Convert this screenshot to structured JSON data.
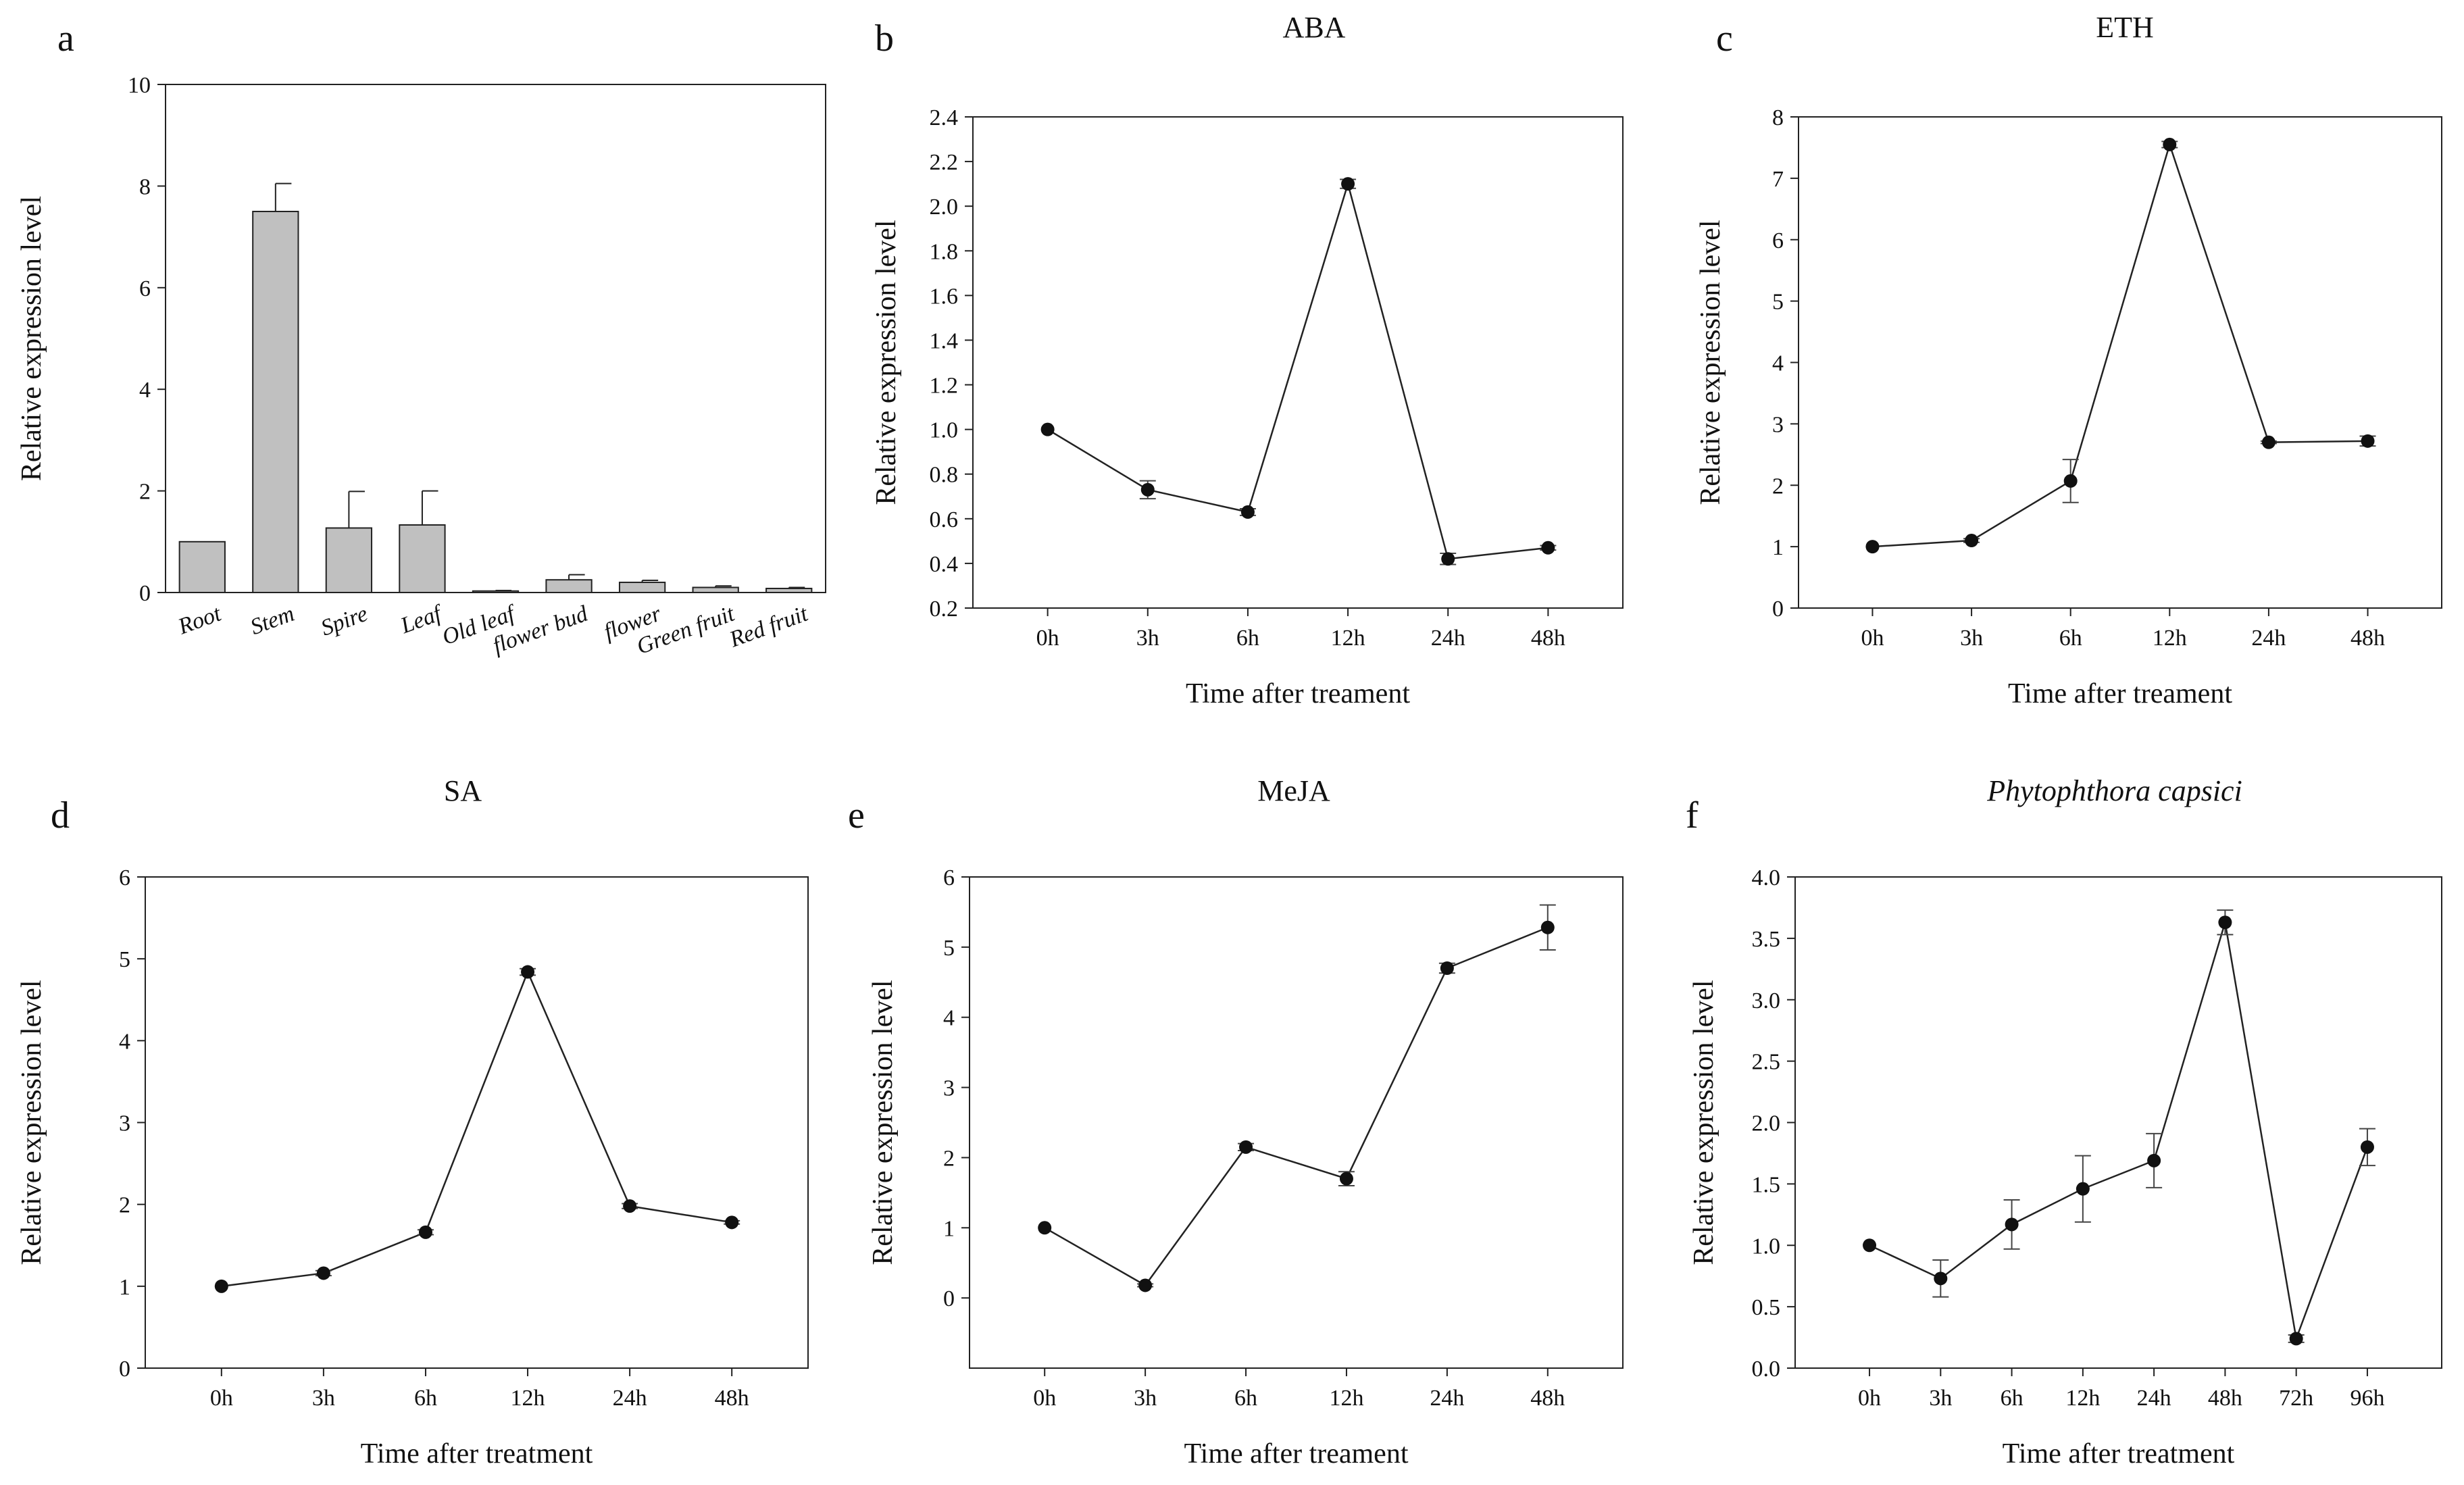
{
  "figure": {
    "chart_data": [
      {
        "panel": "a",
        "type": "bar",
        "title": "",
        "xlabel": "",
        "ylabel": "Relative expression level",
        "ylim": [
          0,
          10
        ],
        "yticks": [
          "0",
          "2",
          "4",
          "6",
          "8",
          "10"
        ],
        "categories": [
          "Root",
          "Stem",
          "Spire",
          "Leaf",
          "Old leaf",
          "flower bud",
          "flower",
          "Green fruit",
          "Red fruit"
        ],
        "values": [
          1.0,
          7.5,
          1.27,
          1.33,
          0.03,
          0.25,
          0.2,
          0.1,
          0.08
        ],
        "errors": [
          0.0,
          0.55,
          0.72,
          0.67,
          0.01,
          0.1,
          0.04,
          0.03,
          0.02
        ],
        "bar_color": "#c0c0c0"
      },
      {
        "panel": "b",
        "type": "line",
        "title": "ABA",
        "xlabel": "Time after treament",
        "ylabel": "Relative expression level",
        "ylim": [
          0.2,
          2.4
        ],
        "yticks": [
          "0.2",
          "0.4",
          "0.6",
          "0.8",
          "1.0",
          "1.2",
          "1.4",
          "1.6",
          "1.8",
          "2.0",
          "2.2",
          "2.4"
        ],
        "categories": [
          "0h",
          "3h",
          "6h",
          "12h",
          "24h",
          "48h"
        ],
        "values": [
          1.0,
          0.73,
          0.63,
          2.1,
          0.42,
          0.47
        ],
        "errors": [
          0.0,
          0.04,
          0.015,
          0.02,
          0.025,
          0.01
        ]
      },
      {
        "panel": "c",
        "type": "line",
        "title": "ETH",
        "xlabel": "Time after treament",
        "ylabel": "Relative expression level",
        "ylim": [
          0,
          8
        ],
        "yticks": [
          "0",
          "1",
          "2",
          "3",
          "4",
          "5",
          "6",
          "7",
          "8"
        ],
        "categories": [
          "0h",
          "3h",
          "6h",
          "12h",
          "24h",
          "48h"
        ],
        "values": [
          1.0,
          1.1,
          2.07,
          7.55,
          2.7,
          2.72
        ],
        "errors": [
          0.0,
          0.03,
          0.35,
          0.05,
          0.02,
          0.08
        ]
      },
      {
        "panel": "d",
        "type": "line",
        "title": "SA",
        "xlabel": "Time after treatment",
        "ylabel": "Relative expression level",
        "ylim": [
          0,
          6
        ],
        "yticks": [
          "0",
          "1",
          "2",
          "3",
          "4",
          "5",
          "6"
        ],
        "categories": [
          "0h",
          "3h",
          "6h",
          "12h",
          "24h",
          "48h"
        ],
        "values": [
          1.0,
          1.16,
          1.66,
          4.84,
          1.98,
          1.78
        ],
        "errors": [
          0.0,
          0.03,
          0.03,
          0.04,
          0.03,
          0.02
        ]
      },
      {
        "panel": "e",
        "type": "line",
        "title": "MeJA",
        "xlabel": "Time after treament",
        "ylabel": "Relative expression level",
        "ylim": [
          -1,
          6
        ],
        "yticks": [
          "0",
          "1",
          "2",
          "3",
          "4",
          "5",
          "6"
        ],
        "categories": [
          "0h",
          "3h",
          "6h",
          "12h",
          "24h",
          "48h"
        ],
        "values": [
          1.0,
          0.18,
          2.15,
          1.7,
          4.7,
          5.28
        ],
        "errors": [
          0.0,
          0.02,
          0.05,
          0.1,
          0.07,
          0.32
        ]
      },
      {
        "panel": "f",
        "type": "line",
        "title": "Phytophthora capsici",
        "title_italic": true,
        "xlabel": "Time after treatment",
        "ylabel": "Relative expression level",
        "ylim": [
          0,
          4
        ],
        "yticks": [
          "0.0",
          "0.5",
          "1.0",
          "1.5",
          "2.0",
          "2.5",
          "3.0",
          "3.5",
          "4.0"
        ],
        "categories": [
          "0h",
          "3h",
          "6h",
          "12h",
          "24h",
          "48h",
          "72h",
          "96h"
        ],
        "values": [
          1.0,
          0.73,
          1.17,
          1.46,
          1.69,
          3.63,
          0.24,
          1.8
        ],
        "errors": [
          0.0,
          0.15,
          0.2,
          0.27,
          0.22,
          0.1,
          0.03,
          0.15
        ]
      }
    ]
  }
}
